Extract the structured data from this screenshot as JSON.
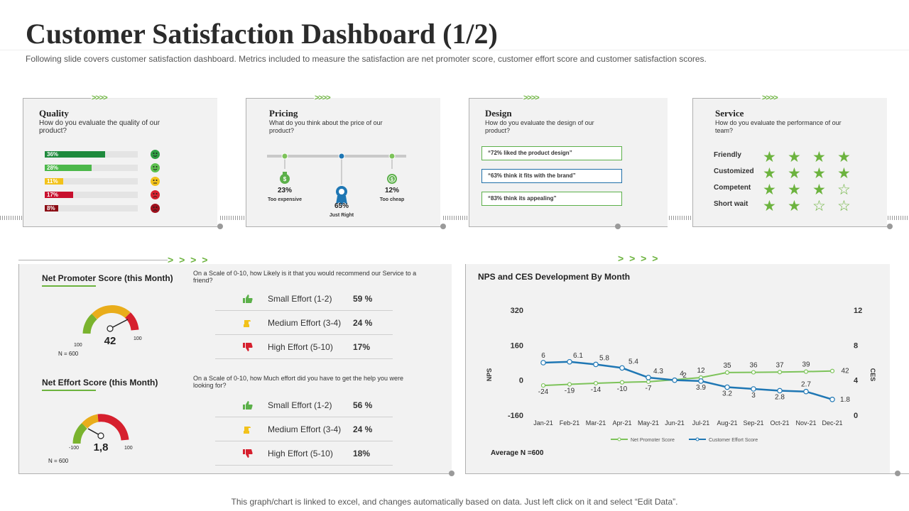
{
  "title": "Customer Satisfaction Dashboard (1/2)",
  "subtitle": "Following slide covers customer satisfaction dashboard. Metrics included to measure the satisfaction are net promoter score, customer effort score and customer satisfaction scores.",
  "footer": "This graph/chart is linked to excel,  and changes automatically based on data. Just left click on it and select “Edit Data”.",
  "chevrons_small": ">>>>",
  "chevrons_large": "> > > >",
  "quality": {
    "title": "Quality",
    "question": "How do you evaluate the quality of our product?",
    "bars": [
      {
        "label": "36%",
        "value": 36,
        "color": "#1e8a3c",
        "face_color": "#2e9e44",
        "face": "very-happy-face-icon"
      },
      {
        "label": "28%",
        "value": 28,
        "color": "#4cb84a",
        "face_color": "#5cc04e",
        "face": "happy-face-icon"
      },
      {
        "label": "11%",
        "value": 11,
        "color": "#f2c21b",
        "face_color": "#f2c21b",
        "face": "neutral-face-icon"
      },
      {
        "label": "17%",
        "value": 17,
        "color": "#c8102e",
        "face_color": "#d6202e",
        "face": "sad-face-icon"
      },
      {
        "label": "8%",
        "value": 8,
        "color": "#8b0c14",
        "face_color": "#a0101c",
        "face": "angry-face-icon"
      }
    ]
  },
  "pricing": {
    "title": "Pricing",
    "question": "What do you think about the price of our product?",
    "options": [
      {
        "pct": "23%",
        "label": "Too expensive",
        "icon": "money-bag-icon",
        "color": "#5cb04a"
      },
      {
        "pct": "65%",
        "label": "Just Right",
        "icon": "award-ribbon-icon",
        "color": "#1f77b4"
      },
      {
        "pct": "12%",
        "label": "Too cheap",
        "icon": "coin-icon",
        "color": "#5cb04a"
      }
    ]
  },
  "design": {
    "title": "Design",
    "question": "How do you evaluate the design of our product?",
    "items": [
      {
        "text": "“72% liked  the product design”",
        "color": "#5cb04a"
      },
      {
        "text": "“63% think it fits with the brand”",
        "color": "#1f6fa8"
      },
      {
        "text": "“83% think its appealing”",
        "color": "#5cb04a"
      }
    ]
  },
  "service": {
    "title": "Service",
    "question": "How do you evaluate the performance of our team?",
    "ratings": [
      {
        "label": "Friendly",
        "stars": 4,
        "max": 4
      },
      {
        "label": "Customized",
        "stars": 4,
        "max": 4
      },
      {
        "label": "Competent",
        "stars": 3,
        "max": 4
      },
      {
        "label": "Short wait",
        "stars": 2,
        "max": 4
      }
    ],
    "star_filled": "★",
    "star_empty": "☆"
  },
  "nps": {
    "title": "Net Promoter Score (this Month)",
    "value": "42",
    "min_label": "-100",
    "mid_label": "100",
    "max_label": "100",
    "n_label": "N = 600",
    "question": "On a Scale of 0-10, how  Likely is it that you would  recommend our Service to a friend?",
    "rows": [
      {
        "label": "Small Effort (1-2)",
        "pct": "59 %",
        "icon": "thumbs-up-icon",
        "color": "#5cb04a"
      },
      {
        "label": "Medium Effort (3-4)",
        "pct": "24 %",
        "icon": "thumbs-side-icon",
        "color": "#f2c21b"
      },
      {
        "label": "High Effort (5-10)",
        "pct": "17%",
        "icon": "thumbs-down-icon",
        "color": "#d6202e"
      }
    ]
  },
  "nes": {
    "title": "Net Effort Score (this Month)",
    "value": "1,8",
    "min_label": "-100",
    "max_label": "100",
    "n_label": "N = 600",
    "question": "On a Scale of 0-10, how  Much effort did you have to get the help you were looking for?",
    "rows": [
      {
        "label": "Small Effort (1-2)",
        "pct": "56 %",
        "icon": "thumbs-up-icon",
        "color": "#5cb04a"
      },
      {
        "label": "Medium Effort (3-4)",
        "pct": "24 %",
        "icon": "thumbs-side-icon",
        "color": "#f2c21b"
      },
      {
        "label": "High Effort (5-10)",
        "pct": "18%",
        "icon": "thumbs-down-icon",
        "color": "#d6202e"
      }
    ]
  },
  "chart_title": "NPS and CES Development By Month",
  "chart_footnote": "Average N =600",
  "chart_data": {
    "type": "line",
    "title": "NPS and CES Development By Month",
    "categories": [
      "Jan-21",
      "Feb-21",
      "Mar-21",
      "Apr-21",
      "May-21",
      "Jun-21",
      "Jul-21",
      "Aug-21",
      "Sep-21",
      "Oct-21",
      "Nov-21",
      "Dec-21"
    ],
    "ylabel": "NPS",
    "y2label": "CES",
    "ylim": [
      -160,
      320
    ],
    "y2lim": [
      0,
      12
    ],
    "yticks": [
      -160,
      0,
      160,
      320
    ],
    "y2ticks": [
      0,
      4,
      8,
      12
    ],
    "series": [
      {
        "name": "Net Promoter Score",
        "axis": "left",
        "color": "#7dc35a",
        "values": [
          -24,
          -19,
          -14,
          -10,
          -7,
          2,
          12,
          35,
          36,
          37,
          39,
          42
        ],
        "labels": [
          "-24",
          "-19",
          "-14",
          "-10",
          "-7",
          "2",
          "12",
          "35",
          "36",
          "37",
          "39",
          "42"
        ]
      },
      {
        "name": "Customer Effort Score",
        "axis": "right",
        "color": "#1f77b4",
        "values": [
          6,
          6.1,
          5.8,
          5.4,
          4.3,
          4,
          3.9,
          3.2,
          3,
          2.8,
          2.7,
          1.8
        ],
        "labels": [
          "6",
          "6.1",
          "5.8",
          "5.4",
          "4.3",
          "4",
          "3.9",
          "3.2",
          "3",
          "2.8",
          "2.7",
          "1.8"
        ]
      }
    ],
    "legend": "bottom",
    "grid": false
  }
}
